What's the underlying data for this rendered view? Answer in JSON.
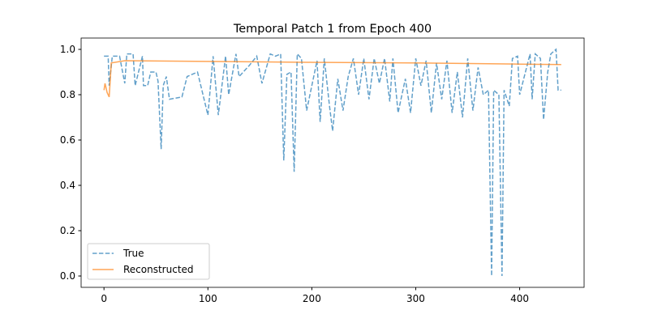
{
  "chart_data": {
    "type": "line",
    "title": "Temporal Patch 1 from Epoch 400",
    "xlim": [
      -22,
      462
    ],
    "ylim": [
      -0.05,
      1.05
    ],
    "xticks": [
      0,
      100,
      200,
      300,
      400
    ],
    "yticks": [
      {
        "value": 0,
        "label": "0.0"
      },
      {
        "value": 0.2,
        "label": "0.2"
      },
      {
        "value": 0.4,
        "label": "0.4"
      },
      {
        "value": 0.6,
        "label": "0.6"
      },
      {
        "value": 0.8,
        "label": "0.8"
      },
      {
        "value": 1,
        "label": "1.0"
      }
    ],
    "legend": "lower left",
    "series": [
      {
        "name": "True",
        "color": "#1f77b4",
        "dashed": true,
        "x": [
          0,
          4,
          5,
          8,
          15,
          20,
          22,
          28,
          30,
          37,
          38,
          42,
          45,
          50,
          52,
          55,
          57,
          60,
          63,
          75,
          80,
          90,
          100,
          105,
          110,
          117,
          120,
          127,
          130,
          140,
          147,
          152,
          160,
          165,
          170,
          173,
          176,
          180,
          183,
          186,
          190,
          195,
          205,
          208,
          212,
          217,
          220,
          225,
          230,
          235,
          240,
          245,
          250,
          255,
          260,
          265,
          270,
          275,
          278,
          283,
          290,
          295,
          300,
          305,
          310,
          315,
          320,
          325,
          330,
          335,
          340,
          345,
          350,
          355,
          360,
          365,
          370,
          373,
          375,
          380,
          383,
          385,
          390,
          393,
          398,
          400,
          405,
          410,
          412,
          415,
          420,
          423,
          427,
          430,
          435,
          437,
          440
        ],
        "values": [
          0.97,
          0.97,
          0.84,
          0.97,
          0.97,
          0.85,
          0.98,
          0.98,
          0.84,
          0.97,
          0.84,
          0.84,
          0.9,
          0.9,
          0.86,
          0.56,
          0.84,
          0.88,
          0.78,
          0.79,
          0.88,
          0.9,
          0.71,
          0.97,
          0.71,
          0.97,
          0.8,
          0.98,
          0.88,
          0.93,
          0.97,
          0.85,
          0.98,
          0.97,
          0.98,
          0.51,
          0.89,
          0.9,
          0.46,
          0.98,
          0.96,
          0.73,
          0.95,
          0.68,
          0.96,
          0.75,
          0.64,
          0.87,
          0.73,
          0.88,
          0.96,
          0.8,
          0.96,
          0.78,
          0.96,
          0.85,
          0.96,
          0.77,
          0.96,
          0.72,
          0.87,
          0.72,
          0.96,
          0.84,
          0.95,
          0.72,
          0.94,
          0.78,
          0.95,
          0.72,
          0.9,
          0.7,
          0.96,
          0.73,
          0.92,
          0.8,
          0.82,
          0,
          0.82,
          0.8,
          0,
          0.82,
          0.75,
          0.96,
          0.97,
          0.8,
          0.89,
          0.98,
          0.78,
          0.98,
          0.96,
          0.69,
          0.9,
          0.98,
          1,
          0.82,
          0.82
        ]
      },
      {
        "name": "Reconstructed",
        "color": "#ff7f0e",
        "dashed": false,
        "x": [
          0,
          1,
          3,
          5,
          7,
          20,
          100,
          200,
          300,
          400,
          440
        ],
        "values": [
          0.82,
          0.85,
          0.81,
          0.79,
          0.94,
          0.95,
          0.947,
          0.943,
          0.94,
          0.935,
          0.933
        ]
      }
    ]
  }
}
